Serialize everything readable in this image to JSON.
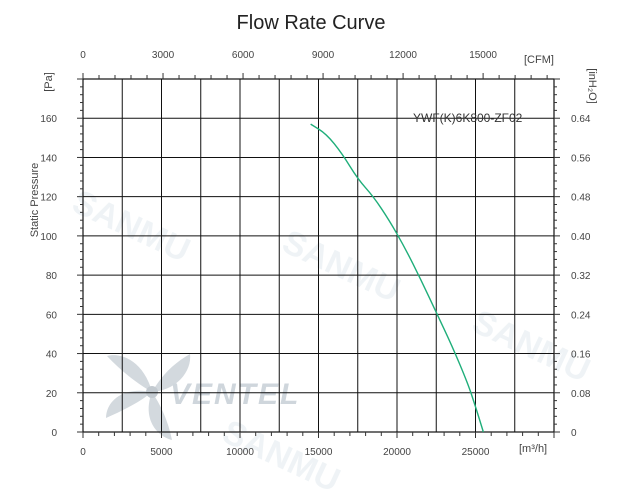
{
  "chart_data": {
    "type": "line",
    "title": "Flow Rate Curve",
    "model": "YWF(K)6K800-ZF02",
    "x_axis": {
      "ticks": [
        0,
        5000,
        10000,
        15000,
        20000,
        25000
      ],
      "labels": [
        "0",
        "5000",
        "10000",
        "15000",
        "20000",
        "25000"
      ],
      "unit": "[m³/h]",
      "range": [
        0,
        30000
      ]
    },
    "x2_axis": {
      "ticks": [
        0,
        3000,
        6000,
        9000,
        12000,
        15000
      ],
      "labels": [
        "0",
        "3000",
        "6000",
        "9000",
        "12000",
        "15000"
      ],
      "unit": "[CFM]",
      "cfm_per_m3h": 0.5886
    },
    "y_axis": {
      "label": "Static Pressure",
      "unit": "[Pa]",
      "ticks": [
        0,
        20,
        40,
        60,
        80,
        100,
        120,
        140,
        160
      ],
      "labels": [
        "0",
        "20",
        "40",
        "60",
        "80",
        "100",
        "120",
        "140",
        "160"
      ],
      "range": [
        0,
        180
      ]
    },
    "y2_axis": {
      "unit": "[inH₂O]",
      "labels": [
        "0",
        "0.08",
        "0.16",
        "0.24",
        "0.32",
        "0.40",
        "0.48",
        "0.56",
        "0.64"
      ]
    },
    "grid": true,
    "series": [
      {
        "color": "#1fae7a",
        "points": [
          [
            14500,
            157
          ],
          [
            15500,
            152
          ],
          [
            16500,
            142
          ],
          [
            17500,
            129
          ],
          [
            18500,
            120
          ],
          [
            19500,
            108
          ],
          [
            20500,
            94
          ],
          [
            21500,
            78
          ],
          [
            22500,
            61
          ],
          [
            23500,
            44
          ],
          [
            24500,
            25
          ],
          [
            25000,
            13
          ],
          [
            25500,
            0
          ]
        ]
      }
    ]
  },
  "watermark": {
    "logo_text": "VENTEL",
    "brand_text": "SANMU"
  }
}
